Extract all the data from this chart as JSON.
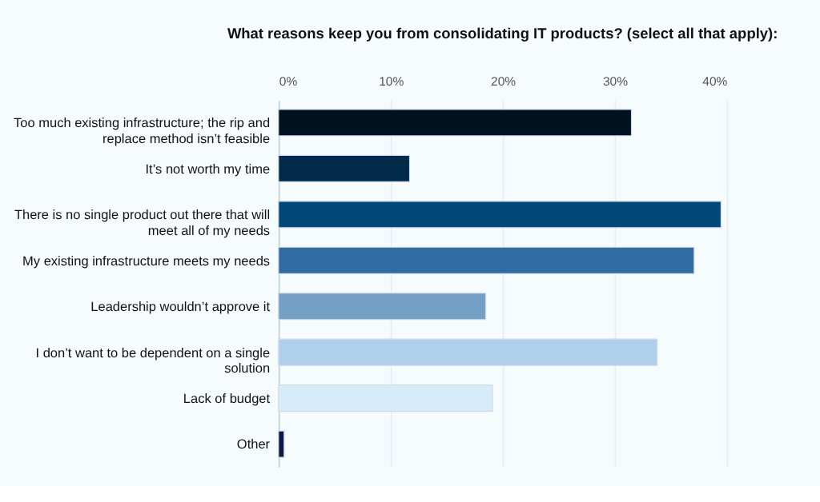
{
  "chart_data": {
    "type": "bar",
    "orientation": "horizontal",
    "title": "What reasons keep you from consolidating IT products? (select all that apply):",
    "categories": [
      "Too much existing infrastructure; the rip and replace method isn’t feasible",
      "It’s not worth my time",
      "There is no single product out there that will meet all of my needs",
      "My existing infrastructure meets my needs",
      "Leadership wouldn’t approve it",
      "I don’t want to be dependent on a single solution",
      "Lack of budget",
      "Other"
    ],
    "values": [
      31.5,
      11.7,
      39.5,
      37.1,
      18.5,
      33.8,
      19.1,
      0.5
    ],
    "colors": [
      "#00111f",
      "#022a4a",
      "#02497a",
      "#306ca3",
      "#74a0c6",
      "#b0cfeb",
      "#d6ecfb",
      "#0b1a45"
    ],
    "xlim": [
      0,
      40
    ],
    "xticks": [
      {
        "value": 0,
        "label": "0%"
      },
      {
        "value": 10,
        "label": "10%"
      },
      {
        "value": 20,
        "label": "20%"
      },
      {
        "value": 30,
        "label": "30%"
      },
      {
        "value": 40,
        "label": "40%"
      }
    ],
    "grid": "x"
  }
}
